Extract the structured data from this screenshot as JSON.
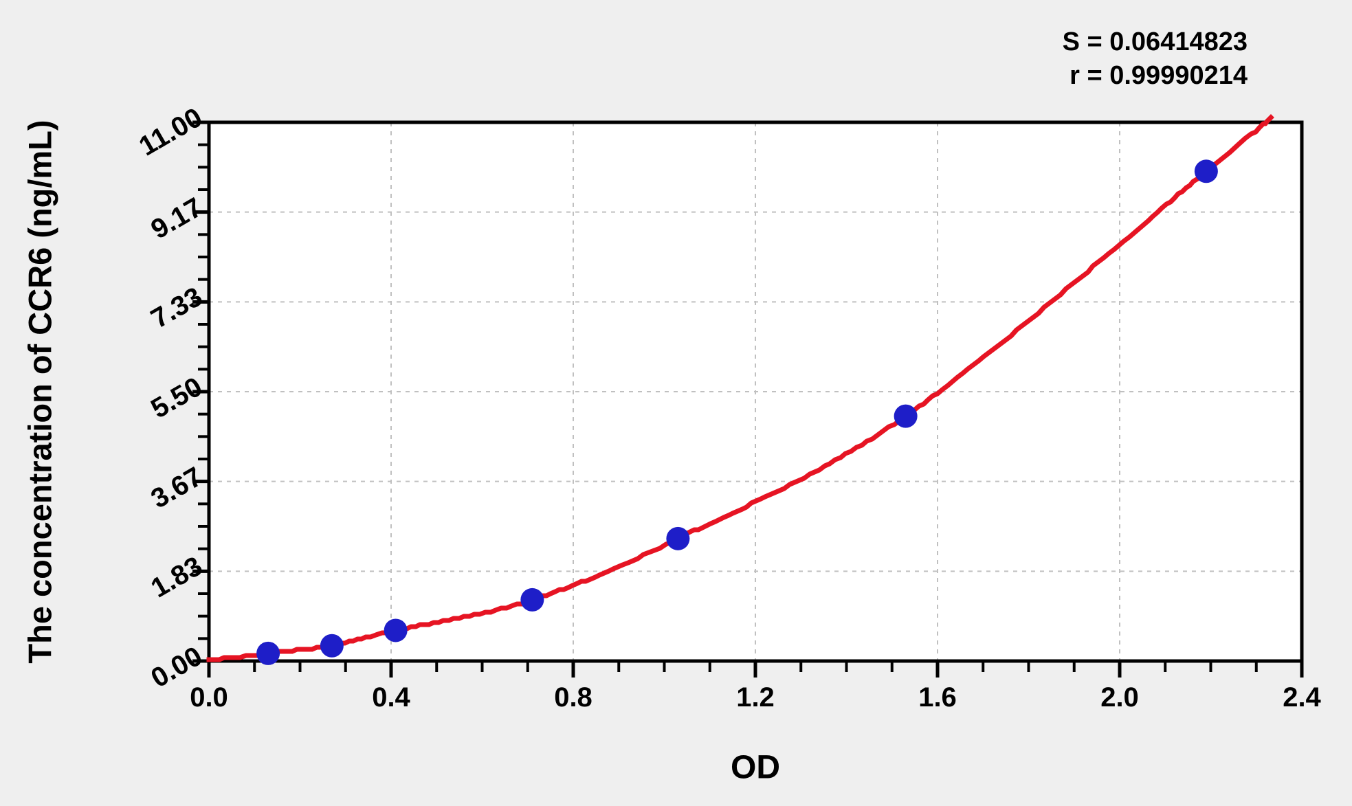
{
  "figure": {
    "type": "elisa-standard-curve"
  },
  "colors": {
    "background": "#efefef",
    "plot_background": "#ffffff",
    "grid": "#c0c0c0",
    "axis": "#000000",
    "point": "#1e1ec8",
    "curve": "#e61423"
  },
  "chart_data": {
    "type": "scatter",
    "title": "",
    "xlabel": "OD",
    "ylabel": "The concentration of CCR6 (ng/mL)",
    "stats_lines": [
      "S = 0.06414823",
      "r = 0.99990214"
    ],
    "stats": {
      "S": "0.06414823",
      "r": "0.99990214"
    },
    "xlim": [
      0,
      2.4
    ],
    "ylim": [
      0,
      11
    ],
    "x_tick_labels": [
      "0.0",
      "0.4",
      "0.8",
      "1.2",
      "1.6",
      "2.0",
      "2.4"
    ],
    "y_tick_labels": [
      "0.00",
      "1.83",
      "3.67",
      "5.50",
      "7.33",
      "9.17",
      "11.00"
    ],
    "x_minor_per_major": 4,
    "y_minor_per_major": 4,
    "grid": "major-dashed",
    "legend": "none",
    "series": [
      {
        "name": "standard-points",
        "type": "scatter",
        "color": "#1e1ec8",
        "x": [
          0.13,
          0.27,
          0.41,
          0.71,
          1.03,
          1.53,
          2.19
        ],
        "y": [
          0.156,
          0.312,
          0.625,
          1.25,
          2.5,
          5,
          10
        ]
      },
      {
        "name": "fitted-curve",
        "type": "line",
        "color": "#e61423",
        "x": [
          0,
          0.13,
          0.27,
          0.41,
          0.71,
          1.03,
          1.53,
          2.19,
          2.332
        ],
        "y": [
          0.02,
          0.156,
          0.312,
          0.625,
          1.25,
          2.5,
          5.0,
          10.0,
          11.08
        ]
      }
    ]
  }
}
